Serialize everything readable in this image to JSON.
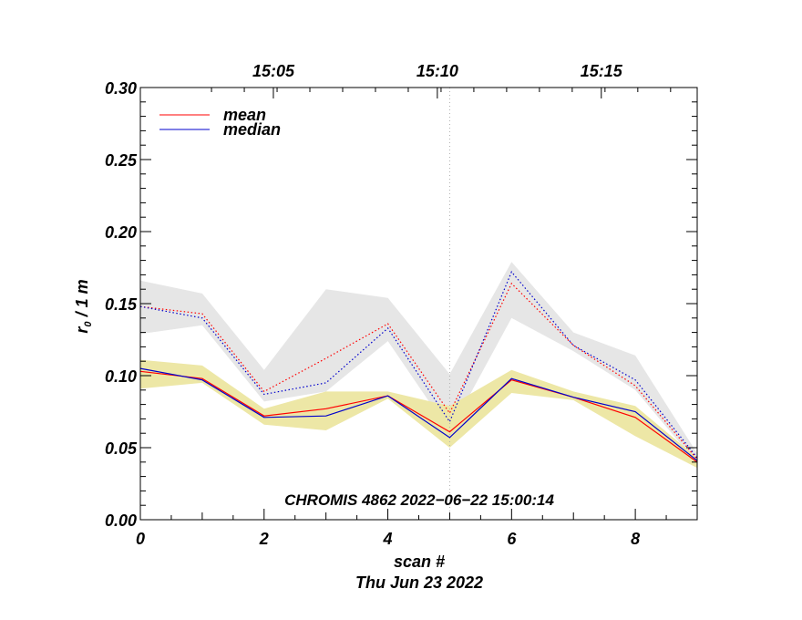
{
  "chart_data": {
    "type": "line",
    "xlabel": "scan #",
    "date_label": "Thu Jun 23 2022",
    "ylabel_main": "r",
    "ylabel_sub": "0",
    "ylabel_rest": " / 1 m",
    "annotation": "CHROMIS 4862 2022−06−22 15:00:14",
    "xlim": [
      0,
      9
    ],
    "ylim": [
      0,
      0.3
    ],
    "x_ticks": [
      0,
      2,
      4,
      6,
      8
    ],
    "x_tick_labels": [
      "0",
      "2",
      "4",
      "6",
      "8"
    ],
    "y_ticks": [
      0.0,
      0.05,
      0.1,
      0.15,
      0.2,
      0.25,
      0.3
    ],
    "y_tick_labels": [
      "0.00",
      "0.05",
      "0.10",
      "0.15",
      "0.20",
      "0.25",
      "0.30"
    ],
    "top_axis": {
      "ticks": [
        2.15,
        4.8,
        7.45
      ],
      "labels": [
        "15:05",
        "15:10",
        "15:15"
      ]
    },
    "marker_line_x": 5,
    "legend": {
      "position": "top-left",
      "entries": [
        {
          "label": "mean",
          "color": "#ff0000"
        },
        {
          "label": "median",
          "color": "#0000cc"
        }
      ]
    },
    "x": [
      0,
      1,
      2,
      3,
      4,
      5,
      6,
      7,
      8,
      9
    ],
    "band_upper_gray": {
      "upper": [
        0.166,
        0.157,
        0.104,
        0.16,
        0.154,
        0.101,
        0.179,
        0.13,
        0.114,
        0.046
      ],
      "lower": [
        0.129,
        0.135,
        0.082,
        0.089,
        0.124,
        0.061,
        0.14,
        0.117,
        0.09,
        0.039
      ]
    },
    "band_lower_yellow": {
      "upper": [
        0.111,
        0.107,
        0.077,
        0.089,
        0.089,
        0.079,
        0.104,
        0.089,
        0.079,
        0.043
      ],
      "lower": [
        0.091,
        0.095,
        0.066,
        0.062,
        0.084,
        0.05,
        0.088,
        0.083,
        0.058,
        0.036
      ]
    },
    "series": [
      {
        "name": "mean (upper)",
        "color": "#ff0000",
        "style": "dotted",
        "values": [
          0.148,
          0.143,
          0.089,
          0.112,
          0.136,
          0.074,
          0.164,
          0.121,
          0.093,
          0.042
        ]
      },
      {
        "name": "median (upper)",
        "color": "#0000cc",
        "style": "dotted",
        "values": [
          0.148,
          0.14,
          0.087,
          0.095,
          0.133,
          0.068,
          0.172,
          0.121,
          0.097,
          0.043
        ]
      },
      {
        "name": "mean",
        "color": "#ff0000",
        "style": "solid",
        "values": [
          0.103,
          0.098,
          0.072,
          0.077,
          0.086,
          0.061,
          0.097,
          0.085,
          0.071,
          0.04
        ]
      },
      {
        "name": "median",
        "color": "#0000cc",
        "style": "solid",
        "values": [
          0.105,
          0.097,
          0.071,
          0.072,
          0.086,
          0.057,
          0.098,
          0.085,
          0.075,
          0.041
        ]
      }
    ]
  }
}
